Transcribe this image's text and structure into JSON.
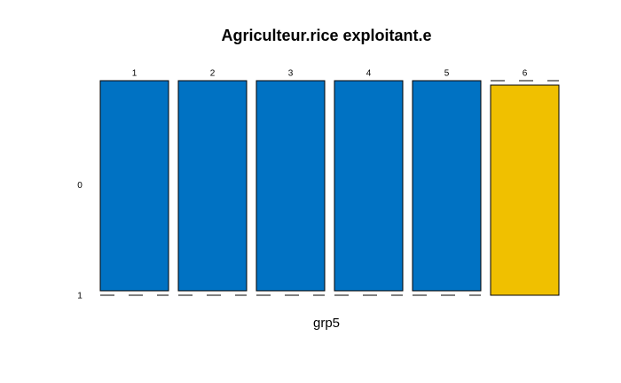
{
  "chart_data": {
    "type": "mosaic",
    "title": "Agriculteur.rice exploitant.e",
    "xlabel": "grp5",
    "categories": [
      "1",
      "2",
      "3",
      "4",
      "5",
      "6"
    ],
    "series": [
      {
        "name": "0",
        "color": "#0072c3",
        "values": [
          1,
          1,
          1,
          1,
          1,
          0
        ]
      },
      {
        "name": "1",
        "color": "#f0c000",
        "values": [
          0,
          0,
          0,
          0,
          0,
          1
        ]
      }
    ]
  }
}
